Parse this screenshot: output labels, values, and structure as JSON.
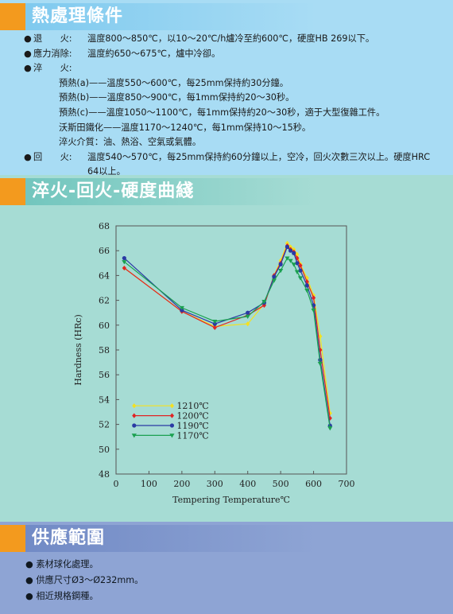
{
  "sections": {
    "heat_treatment": {
      "title": "熱處理條件",
      "items": [
        {
          "bullet": "●",
          "label": "退　　火:",
          "value": "溫度800～850℃，以10～20℃/h爐冷至約600℃，硬度HB 269以下。"
        },
        {
          "bullet": "●",
          "label": "應力消除:",
          "value": "溫度約650～675℃，爐中冷卻。"
        },
        {
          "bullet": "●",
          "label": "淬　　火:",
          "value": ""
        },
        {
          "bullet": "",
          "label": "",
          "value": "預熱(a)——溫度550～600℃，每25mm保持約30分鐘。"
        },
        {
          "bullet": "",
          "label": "",
          "value": "預熱(b)——溫度850～900℃，每1mm保持約20～30秒。"
        },
        {
          "bullet": "",
          "label": "",
          "value": "預熱(c)——溫度1050～1100℃，每1mm保持約20～30秒，適于大型復雜工件。"
        },
        {
          "bullet": "",
          "label": "",
          "value": "沃斯田鐵化——溫度1170～1240℃，每1mm保持10～15秒。"
        },
        {
          "bullet": "",
          "label": "",
          "value": "淬火介質：油、熱浴、空氣或氣體。"
        },
        {
          "bullet": "●",
          "label": "回　　火:",
          "value": "溫度540～570℃，每25mm保持約60分鐘以上，空冷，回火次數三次以上。硬度HRC 64以上。"
        }
      ]
    },
    "curve": {
      "title": "淬火-回火-硬度曲綫"
    },
    "supply": {
      "title": "供應範圍",
      "items": [
        {
          "bullet": "●",
          "text": "素材球化處理。"
        },
        {
          "bullet": "●",
          "text": "供應尺寸Ø3～Ø232mm。"
        },
        {
          "bullet": "●",
          "text": "相近規格鋼種。"
        }
      ]
    }
  },
  "chart_data": {
    "type": "line",
    "title": "",
    "xlabel": "Tempering Temperature℃",
    "ylabel": "Hardness (HRc)",
    "xlim": [
      0,
      700
    ],
    "ylim": [
      48,
      68
    ],
    "xticks": [
      0,
      100,
      200,
      300,
      400,
      500,
      600,
      700
    ],
    "yticks": [
      48,
      50,
      52,
      54,
      56,
      58,
      60,
      62,
      64,
      66,
      68
    ],
    "grid": false,
    "legend_position": "bottom-left",
    "series": [
      {
        "name": "1210℃",
        "color": "#f4e020",
        "marker": "diamond",
        "x": [
          25,
          200,
          300,
          400,
          450,
          480,
          500,
          520,
          530,
          540,
          550,
          560,
          580,
          600,
          620,
          650
        ],
        "y": [
          64.6,
          61.1,
          59.9,
          60.1,
          61.7,
          64.0,
          65.2,
          66.6,
          66.3,
          66.1,
          65.7,
          64.9,
          63.8,
          62.4,
          59.1,
          52.9
        ]
      },
      {
        "name": "1200℃",
        "color": "#e02424",
        "marker": "diamond",
        "x": [
          25,
          200,
          300,
          400,
          450,
          480,
          500,
          520,
          530,
          540,
          550,
          560,
          580,
          600,
          620,
          650
        ],
        "y": [
          64.6,
          61.1,
          59.8,
          60.8,
          61.6,
          64.0,
          65.0,
          66.4,
          66.1,
          65.9,
          65.4,
          64.8,
          63.5,
          62.2,
          58.0,
          52.5
        ]
      },
      {
        "name": "1190℃",
        "color": "#2a3aa4",
        "marker": "circle",
        "x": [
          25,
          200,
          300,
          400,
          450,
          480,
          500,
          520,
          530,
          540,
          550,
          560,
          580,
          600,
          620,
          650
        ],
        "y": [
          65.4,
          61.2,
          60.1,
          61.0,
          61.8,
          63.9,
          64.9,
          66.3,
          66.0,
          65.8,
          65.0,
          64.4,
          63.2,
          61.6,
          57.2,
          51.9
        ]
      },
      {
        "name": "1170℃",
        "color": "#1aa050",
        "marker": "triangle",
        "x": [
          25,
          200,
          300,
          400,
          450,
          480,
          500,
          520,
          530,
          540,
          550,
          560,
          580,
          600,
          620,
          650
        ],
        "y": [
          65.1,
          61.4,
          60.3,
          60.7,
          61.9,
          63.6,
          64.4,
          65.4,
          65.2,
          64.9,
          64.3,
          63.8,
          62.8,
          61.2,
          56.9,
          51.7
        ]
      }
    ]
  }
}
